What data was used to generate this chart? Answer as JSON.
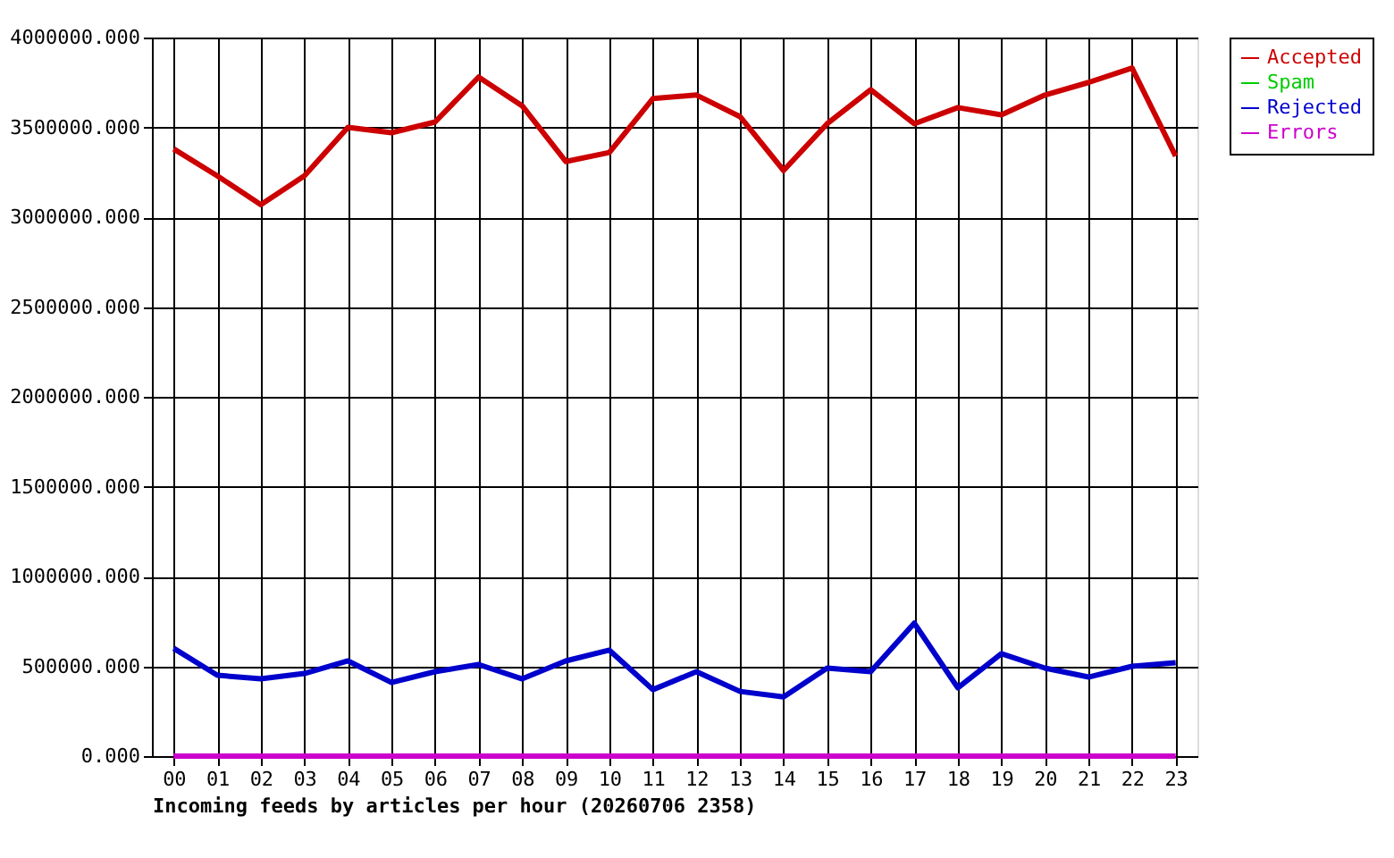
{
  "chart_data": {
    "type": "line",
    "xlabel": "Incoming feeds by articles per hour (20260706 2358)",
    "categories": [
      "00",
      "01",
      "02",
      "03",
      "04",
      "05",
      "06",
      "07",
      "08",
      "09",
      "10",
      "11",
      "12",
      "13",
      "14",
      "15",
      "16",
      "17",
      "18",
      "19",
      "20",
      "21",
      "22",
      "23"
    ],
    "series": [
      {
        "name": "Accepted",
        "color": "#cc0000",
        "values": [
          3380000,
          3230000,
          3070000,
          3230000,
          3500000,
          3470000,
          3530000,
          3780000,
          3620000,
          3310000,
          3360000,
          3660000,
          3680000,
          3560000,
          3260000,
          3520000,
          3710000,
          3520000,
          3610000,
          3570000,
          3680000,
          3750000,
          3830000,
          3340000
        ]
      },
      {
        "name": "Spam",
        "color": "#00cc00",
        "values": [
          null,
          null,
          null,
          null,
          null,
          null,
          null,
          null,
          null,
          null,
          null,
          null,
          null,
          null,
          null,
          null,
          null,
          null,
          null,
          null,
          null,
          null,
          null,
          null
        ]
      },
      {
        "name": "Rejected",
        "color": "#0000cc",
        "values": [
          600000,
          450000,
          430000,
          460000,
          530000,
          410000,
          470000,
          510000,
          430000,
          530000,
          590000,
          370000,
          470000,
          360000,
          330000,
          490000,
          470000,
          740000,
          380000,
          570000,
          490000,
          440000,
          500000,
          520000
        ]
      },
      {
        "name": "Errors",
        "color": "#cc00cc",
        "values": [
          0,
          0,
          0,
          0,
          0,
          0,
          0,
          0,
          0,
          0,
          0,
          0,
          0,
          0,
          0,
          0,
          0,
          0,
          0,
          0,
          0,
          0,
          0,
          0
        ]
      }
    ],
    "ylim": [
      0,
      4000000
    ],
    "yticks": [
      {
        "value": 0,
        "label": "0.000"
      },
      {
        "value": 500000,
        "label": "500000.000"
      },
      {
        "value": 1000000,
        "label": "1000000.000"
      },
      {
        "value": 1500000,
        "label": "1500000.000"
      },
      {
        "value": 2000000,
        "label": "2000000.000"
      },
      {
        "value": 2500000,
        "label": "2500000.000"
      },
      {
        "value": 3000000,
        "label": "3000000.000"
      },
      {
        "value": 3500000,
        "label": "3500000.000"
      },
      {
        "value": 4000000,
        "label": "4000000.000"
      }
    ],
    "grid": true,
    "legend": "top right",
    "marker": "none",
    "line_style": "solid"
  }
}
